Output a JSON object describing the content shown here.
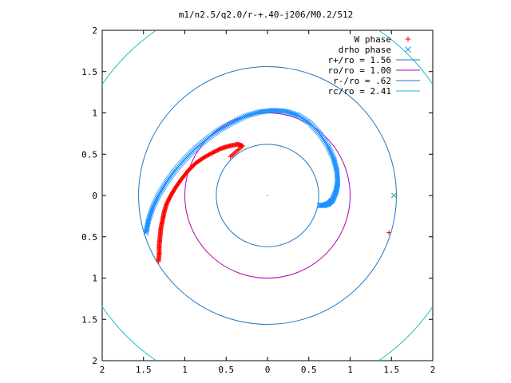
{
  "chart_data": {
    "type": "scatter",
    "title": "m1/n2.5/q2.0/r-+.40-j206/M0.2/512",
    "xlabel": "",
    "ylabel": "",
    "xlim": [
      -2,
      2
    ],
    "ylim": [
      -2,
      2
    ],
    "x_tick_labels": [
      "2",
      "1.5",
      "1",
      "0.5",
      "0",
      "0.5",
      "1",
      "1.5",
      "2"
    ],
    "x_tick_values": [
      -2,
      -1.5,
      -1,
      -0.5,
      0,
      0.5,
      1,
      1.5,
      2
    ],
    "y_tick_labels": [
      "2",
      "1.5",
      "1",
      "0.5",
      "0",
      "0.5",
      "1",
      "1.5",
      "2"
    ],
    "y_tick_values": [
      2,
      1.5,
      1,
      0.5,
      0,
      -0.5,
      -1,
      -1.5,
      -2
    ],
    "grid": false,
    "legend_position": "top-right",
    "series": [
      {
        "name": "W phase",
        "kind": "scatter",
        "marker": "plus",
        "color": "#ff0000",
        "x": [
          -1.32,
          -1.31,
          -1.31,
          -1.3,
          -1.29,
          -1.27,
          -1.25,
          -1.22,
          -1.17,
          -1.11,
          -1.04,
          -0.96,
          -0.87,
          -0.77,
          -0.66,
          -0.56,
          -0.46,
          -0.36,
          -0.3,
          -0.45,
          1.47
        ],
        "y": [
          -0.8,
          -0.7,
          -0.6,
          -0.5,
          -0.4,
          -0.3,
          -0.2,
          -0.1,
          0.0,
          0.1,
          0.2,
          0.3,
          0.39,
          0.46,
          0.52,
          0.57,
          0.6,
          0.62,
          0.6,
          0.47,
          -0.45
        ]
      },
      {
        "name": "drho phase",
        "kind": "scatter",
        "marker": "cross",
        "color": "#1e90ff",
        "x": [
          -1.47,
          -1.44,
          -1.39,
          -1.32,
          -1.23,
          -1.13,
          -1.01,
          -0.88,
          -0.74,
          -0.59,
          -0.43,
          -0.27,
          -0.1,
          0.06,
          0.22,
          0.37,
          0.51,
          0.63,
          0.73,
          0.8,
          0.84,
          0.85,
          0.83,
          0.79,
          0.74,
          0.68,
          0.63,
          1.53
        ],
        "y": [
          -0.45,
          -0.3,
          -0.15,
          0.0,
          0.15,
          0.29,
          0.43,
          0.56,
          0.68,
          0.79,
          0.88,
          0.96,
          1.01,
          1.03,
          1.02,
          0.97,
          0.88,
          0.75,
          0.6,
          0.45,
          0.3,
          0.15,
          0.05,
          -0.05,
          -0.1,
          -0.12,
          -0.12,
          0.0
        ]
      },
      {
        "name": "r+/ro = 1.56",
        "kind": "circle",
        "r": 1.56,
        "color": "#1f77c4"
      },
      {
        "name": "ro/ro = 1.00",
        "kind": "circle",
        "r": 1.0,
        "color": "#b000b0"
      },
      {
        "name": "r-/ro = .62",
        "kind": "circle",
        "r": 0.62,
        "color": "#1f77c4"
      },
      {
        "name": "rc/ro = 2.41",
        "kind": "circle",
        "r": 2.41,
        "color": "#19c2c2"
      }
    ]
  }
}
